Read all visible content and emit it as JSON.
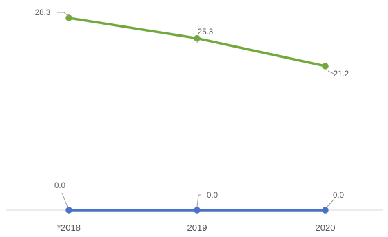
{
  "chart_data": {
    "type": "line",
    "categories": [
      "*2018",
      "2019",
      "2020"
    ],
    "series": [
      {
        "values": [
          28.3,
          25.3,
          21.2
        ],
        "labels": [
          "28.3",
          "25.3",
          "21.2"
        ],
        "color": "#72a83c"
      },
      {
        "values": [
          0.0,
          0.0,
          0.0
        ],
        "labels": [
          "0.0",
          "0.0",
          "0.0"
        ],
        "color": "#4a72c4"
      }
    ],
    "title": "",
    "xlabel": "",
    "ylabel": "",
    "ylim": [
      0,
      30
    ],
    "grid": false,
    "legend": "none",
    "baseline_color": "#d9d9d9"
  }
}
